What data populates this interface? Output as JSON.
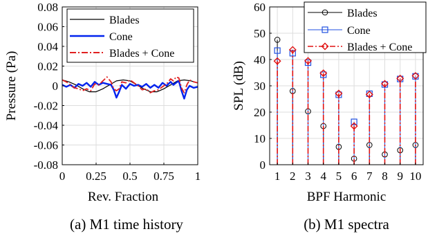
{
  "chart_data": [
    {
      "type": "line",
      "caption": "(a) M1 time history",
      "xlabel": "Rev. Fraction",
      "ylabel": "Pressure (Pa)",
      "xlim": [
        0,
        1
      ],
      "ylim": [
        -0.08,
        0.08
      ],
      "xticks": [
        "0",
        "0.25",
        "0.5",
        "0.75",
        "1"
      ],
      "yticks": [
        "0.08",
        "0.06",
        "0.04",
        "0.02",
        "0",
        "-0.02",
        "-0.04",
        "-0.06",
        "-0.08"
      ],
      "grid": true,
      "legend_position": "top-right",
      "series": [
        {
          "name": "Blades",
          "color": "#000000",
          "style": "solid",
          "x": [
            0,
            0.05,
            0.1,
            0.15,
            0.2,
            0.25,
            0.3,
            0.35,
            0.4,
            0.45,
            0.5,
            0.55,
            0.6,
            0.65,
            0.7,
            0.75,
            0.8,
            0.85,
            0.9,
            0.95,
            1
          ],
          "y": [
            0.006,
            0.004,
            0.001,
            -0.003,
            -0.006,
            -0.006,
            -0.003,
            0.001,
            0.005,
            0.006,
            0.005,
            0.001,
            -0.003,
            -0.006,
            -0.006,
            -0.003,
            0.001,
            0.005,
            0.006,
            0.005,
            0.003
          ]
        },
        {
          "name": "Cone",
          "color": "#0022ee",
          "style": "solid",
          "x": [
            0,
            0.03,
            0.06,
            0.09,
            0.12,
            0.15,
            0.18,
            0.21,
            0.24,
            0.27,
            0.3,
            0.33,
            0.36,
            0.38,
            0.4,
            0.42,
            0.44,
            0.47,
            0.5,
            0.53,
            0.56,
            0.59,
            0.62,
            0.65,
            0.68,
            0.71,
            0.74,
            0.77,
            0.8,
            0.82,
            0.84,
            0.86,
            0.88,
            0.9,
            0.92,
            0.94,
            0.97,
            1
          ],
          "y": [
            0.001,
            -0.001,
            0.001,
            -0.002,
            0.002,
            0.0,
            0.003,
            -0.001,
            0.004,
            0.001,
            0.003,
            0.002,
            0.001,
            -0.004,
            -0.012,
            -0.006,
            0.001,
            -0.003,
            0.002,
            0.0,
            0.001,
            -0.001,
            0.002,
            -0.002,
            0.001,
            -0.002,
            0.003,
            0.0,
            0.004,
            0.001,
            0.003,
            0.005,
            -0.005,
            -0.013,
            -0.004,
            0.0,
            -0.002,
            -0.001
          ]
        },
        {
          "name": "Blades + Cone",
          "color": "#e02020",
          "style": "dashdot",
          "x": [
            0,
            0.03,
            0.06,
            0.09,
            0.12,
            0.15,
            0.18,
            0.21,
            0.24,
            0.27,
            0.3,
            0.33,
            0.36,
            0.38,
            0.4,
            0.42,
            0.44,
            0.47,
            0.5,
            0.53,
            0.56,
            0.59,
            0.62,
            0.65,
            0.68,
            0.71,
            0.74,
            0.77,
            0.8,
            0.82,
            0.84,
            0.86,
            0.88,
            0.9,
            0.92,
            0.94,
            0.97,
            1
          ],
          "y": [
            0.006,
            0.004,
            0.001,
            -0.002,
            -0.003,
            -0.005,
            -0.003,
            -0.005,
            0.002,
            0.001,
            0.005,
            0.009,
            0.004,
            -0.003,
            -0.005,
            -0.003,
            0.004,
            0.003,
            0.006,
            0.003,
            0.0,
            -0.004,
            -0.003,
            -0.007,
            -0.005,
            -0.004,
            -0.001,
            0.002,
            0.007,
            0.005,
            0.009,
            0.008,
            -0.002,
            -0.007,
            0.001,
            0.006,
            0.004,
            0.003
          ]
        }
      ]
    },
    {
      "type": "stem",
      "caption": "(b) M1 spectra",
      "xlabel": "BPF Harmonic",
      "ylabel": "SPL (dB)",
      "xlim": [
        0.5,
        10.5
      ],
      "ylim": [
        0,
        60
      ],
      "categories": [
        "1",
        "2",
        "3",
        "4",
        "5",
        "6",
        "7",
        "8",
        "9",
        "10"
      ],
      "yticks": [
        "60",
        "50",
        "40",
        "30",
        "20",
        "10",
        "0"
      ],
      "grid": true,
      "legend_position": "top-right",
      "series": [
        {
          "name": "Blades",
          "color": "#000000",
          "marker": "circle",
          "offset": 0.0,
          "values": [
            47.5,
            28,
            20.3,
            14.7,
            6.8,
            2.3,
            7.5,
            3.9,
            5.5,
            7.5
          ]
        },
        {
          "name": "Cone",
          "color": "#1f4fe0",
          "marker": "square",
          "offset": 0.0,
          "values": [
            43.4,
            42.4,
            38.8,
            34.2,
            26.6,
            16.3,
            27.0,
            30.5,
            32.6,
            33.6
          ]
        },
        {
          "name": "Blades + Cone",
          "color": "#e01010",
          "marker": "diamond",
          "offset": 0.0,
          "values": [
            39.4,
            43.7,
            39.5,
            34.8,
            27.1,
            14.7,
            26.7,
            30.8,
            32.8,
            33.8
          ]
        }
      ]
    }
  ]
}
